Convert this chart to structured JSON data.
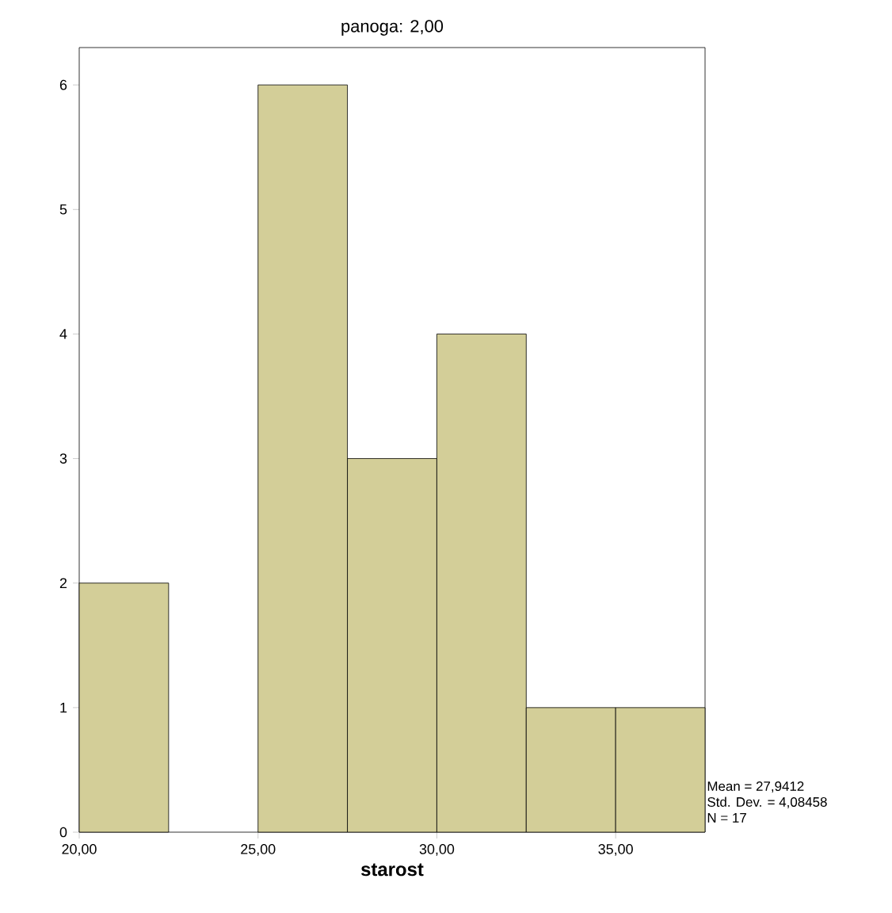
{
  "chart_data": {
    "type": "histogram",
    "title": "panoga: 2,00",
    "xlabel": "starost",
    "bins": [
      20,
      22.5,
      25,
      27.5,
      30,
      32.5,
      35,
      37.5
    ],
    "values": [
      2,
      0,
      6,
      3,
      4,
      1,
      1
    ],
    "color": "#d3ce98",
    "xlim": [
      20,
      37.5
    ],
    "ylim": [
      0,
      6.3
    ],
    "xticks": [
      {
        "value": 20,
        "label": "20,00"
      },
      {
        "value": 25,
        "label": "25,00"
      },
      {
        "value": 30,
        "label": "30,00"
      },
      {
        "value": 35,
        "label": "35,00"
      }
    ],
    "yticks": [
      0,
      1,
      2,
      3,
      4,
      5,
      6
    ],
    "annotations": [
      "Mean = 27,9412",
      "Std. Dev. = 4,08458",
      "N = 17"
    ]
  }
}
